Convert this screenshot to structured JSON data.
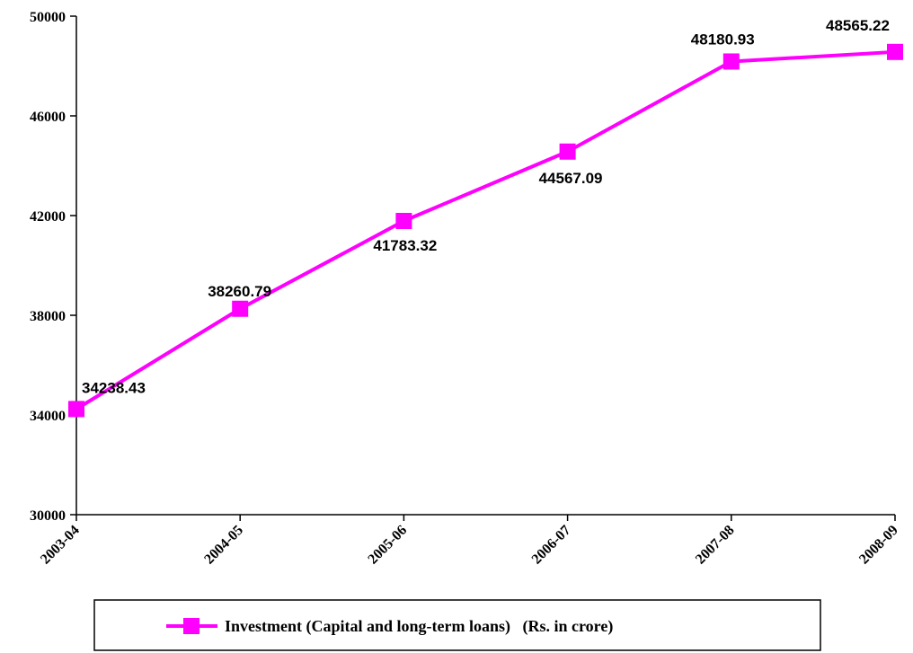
{
  "chart_data": {
    "type": "line",
    "categories": [
      "2003-04",
      "2004-05",
      "2005-06",
      "2006-07",
      "2007-08",
      "2008-09"
    ],
    "series": [
      {
        "name": "Investment (Capital and long-term loans)   (Rs. in crore)",
        "values": [
          34238.43,
          38260.79,
          41783.32,
          44567.09,
          48180.93,
          48565.22
        ],
        "labels": [
          "34238.43",
          "38260.79",
          "41783.32",
          "44567.09",
          "48180.93",
          "48565.22"
        ],
        "color": "#FF00FF"
      }
    ],
    "yticks": [
      "30000",
      "34000",
      "38000",
      "42000",
      "46000",
      "50000"
    ],
    "ylim": [
      30000,
      50000
    ],
    "grid": false,
    "legend": "bottom",
    "title": "",
    "xlabel": "",
    "ylabel": ""
  }
}
